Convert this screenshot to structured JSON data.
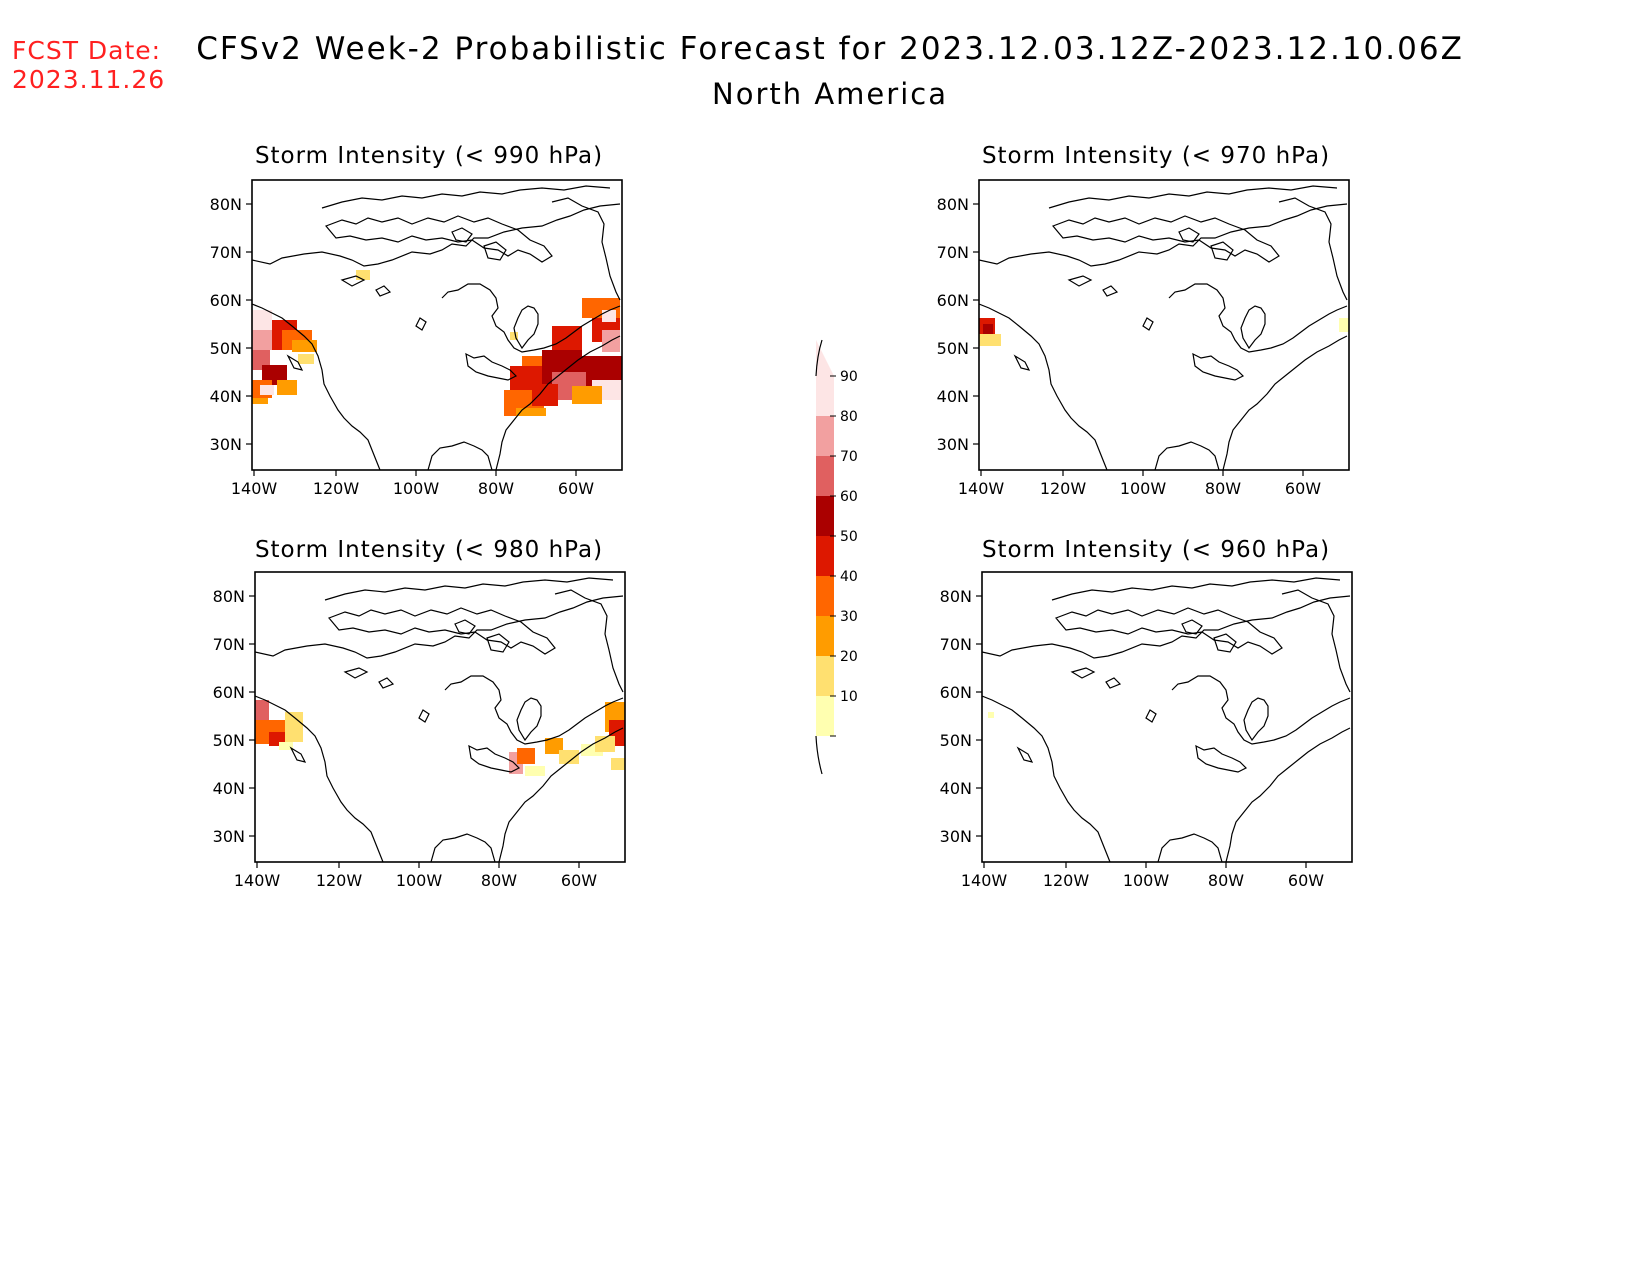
{
  "header": {
    "fcst_label": "FCST Date:",
    "fcst_date": "2023.11.26",
    "title": "CFSv2 Week-2 Probabilistic Forecast for 2023.12.03.12Z-2023.12.10.06Z",
    "subtitle": "North America"
  },
  "axes": {
    "lat_ticks": [
      "80N",
      "70N",
      "60N",
      "50N",
      "40N",
      "30N"
    ],
    "lon_ticks": [
      "140W",
      "120W",
      "100W",
      "80W",
      "60W"
    ]
  },
  "panels": [
    {
      "title": "Storm Intensity (< 990 hPa)"
    },
    {
      "title": "Storm Intensity (< 970 hPa)"
    },
    {
      "title": "Storm Intensity (< 980 hPa)"
    },
    {
      "title": "Storm Intensity (< 960 hPa)"
    }
  ],
  "colorbar": {
    "labels": [
      "90",
      "80",
      "70",
      "60",
      "50",
      "40",
      "30",
      "20",
      "10"
    ],
    "colors": [
      "#fde5e5",
      "#f2a0a0",
      "#e06060",
      "#aa0000",
      "#dd1800",
      "#ff6600",
      "#ff9c00",
      "#ffe070",
      "#ffffb0"
    ]
  }
}
